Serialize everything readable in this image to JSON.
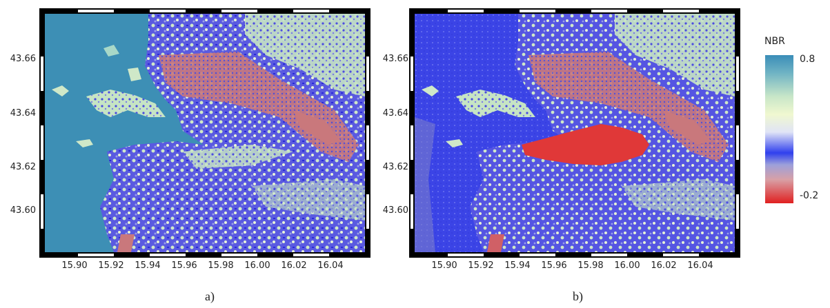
{
  "panels": [
    {
      "caption": "a)",
      "y_ticks": [
        "43.66",
        "43.64",
        "43.62",
        "43.60"
      ],
      "x_ticks": [
        "15.90",
        "15.92",
        "15.94",
        "15.96",
        "15.98",
        "16.00",
        "16.02",
        "16.04"
      ]
    },
    {
      "caption": "b)",
      "y_ticks": [
        "43.66",
        "43.64",
        "43.62",
        "43.60"
      ],
      "x_ticks": [
        "15.90",
        "15.92",
        "15.94",
        "15.96",
        "15.98",
        "16.00",
        "16.02",
        "16.04"
      ]
    }
  ],
  "legend": {
    "title": "NBR",
    "max_label": "0.8",
    "min_label": "-0.2"
  },
  "colors": {
    "water": "#3d8fb5",
    "vegetation_high": "#cfe8c8",
    "vegetation_mid": "#3c3ce6",
    "burned": "#e03030"
  }
}
